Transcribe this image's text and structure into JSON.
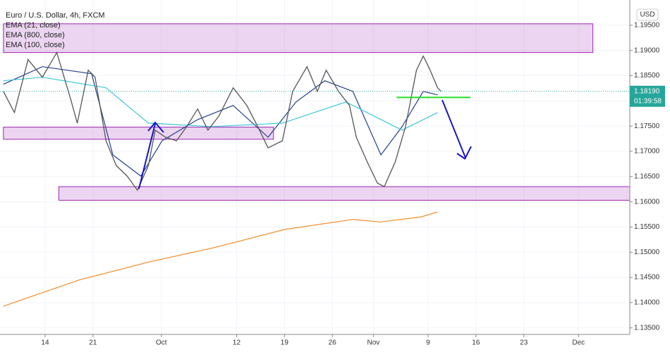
{
  "chart_data": {
    "type": "line",
    "title": "Euro / U.S. Dollar, 4h, FXCM",
    "currency": "USD",
    "last_price": {
      "value": 1.1819,
      "label": "1.18190"
    },
    "countdown": "01:39:58",
    "xlim": [
      -6.6,
      85.5
    ],
    "ylim": [
      1.1337,
      1.1989
    ],
    "xticks": [
      {
        "value": 0,
        "label": "14"
      },
      {
        "value": 7,
        "label": "21"
      },
      {
        "value": 17,
        "label": "Oct"
      },
      {
        "value": 28,
        "label": "12"
      },
      {
        "value": 35,
        "label": "19"
      },
      {
        "value": 42,
        "label": "26"
      },
      {
        "value": 48,
        "label": "Nov"
      },
      {
        "value": 56,
        "label": "9"
      },
      {
        "value": 63,
        "label": "16"
      },
      {
        "value": 70,
        "label": "23"
      },
      {
        "value": 78,
        "label": "Dec"
      }
    ],
    "yticks": [
      {
        "value": 1.135,
        "label": "1.13500"
      },
      {
        "value": 1.14,
        "label": "1.14000"
      },
      {
        "value": 1.145,
        "label": "1.14500"
      },
      {
        "value": 1.15,
        "label": "1.15000"
      },
      {
        "value": 1.155,
        "label": "1.15500"
      },
      {
        "value": 1.16,
        "label": "1.16000"
      },
      {
        "value": 1.165,
        "label": "1.16500"
      },
      {
        "value": 1.17,
        "label": "1.17000"
      },
      {
        "value": 1.175,
        "label": "1.17500"
      },
      {
        "value": 1.18,
        "label": "1.18000"
      },
      {
        "value": 1.185,
        "label": "1.18500"
      },
      {
        "value": 1.19,
        "label": "1.19000"
      },
      {
        "value": 1.195,
        "label": "1.19500"
      }
    ],
    "price": {
      "color": "#555555",
      "x": [
        -6.1,
        -4.5,
        -2.5,
        -0.4,
        1.7,
        3.7,
        4.7,
        6.3,
        7.3,
        8.9,
        10.4,
        12.0,
        13.5,
        15.1,
        16.1,
        17.6,
        19.2,
        20.7,
        22.3,
        23.8,
        25.4,
        27.5,
        29.5,
        31.1,
        32.6,
        34.7,
        36.2,
        38.3,
        39.8,
        41.1,
        42.9,
        44.5,
        45.5,
        47.1,
        48.6,
        49.6,
        51.2,
        52.7,
        54.3,
        55.3,
        56.3,
        57.4,
        57.9
      ],
      "values": [
        1.1819,
        1.1777,
        1.1882,
        1.1847,
        1.1896,
        1.1805,
        1.1756,
        1.1861,
        1.1847,
        1.1721,
        1.1672,
        1.1651,
        1.1623,
        1.1672,
        1.1742,
        1.1728,
        1.1721,
        1.1749,
        1.1784,
        1.1742,
        1.177,
        1.1826,
        1.1791,
        1.1749,
        1.1707,
        1.1721,
        1.1819,
        1.1868,
        1.1819,
        1.1861,
        1.1819,
        1.1791,
        1.1728,
        1.1679,
        1.1637,
        1.163,
        1.1679,
        1.1749,
        1.1861,
        1.1889,
        1.1861,
        1.1826,
        1.1819
      ]
    },
    "series": [
      {
        "name": "EMA (21, close)",
        "color": "#1f3f8f",
        "x": [
          -6.1,
          -0.4,
          6.8,
          9.9,
          14.0,
          17.1,
          22.3,
          27.5,
          32.6,
          36.7,
          40.9,
          45.0,
          49.1,
          52.2,
          55.3,
          57.4
        ],
        "values": [
          1.1833,
          1.1868,
          1.1854,
          1.1693,
          1.1651,
          1.1721,
          1.1763,
          1.1791,
          1.1728,
          1.1798,
          1.184,
          1.1819,
          1.1693,
          1.1749,
          1.1819,
          1.1812
        ]
      },
      {
        "name": "EMA (800, close)",
        "color": "#f28c28",
        "x": [
          -6.1,
          5,
          15,
          25,
          35,
          45,
          49,
          55,
          57.4
        ],
        "values": [
          1.1393,
          1.1445,
          1.148,
          1.151,
          1.1545,
          1.1565,
          1.156,
          1.157,
          1.158
        ]
      },
      {
        "name": "EMA (100, close)",
        "color": "#3cc6d8",
        "x": [
          -6.1,
          -0.4,
          8.9,
          15.1,
          24.4,
          34.7,
          44.0,
          52.2,
          57.4
        ],
        "values": [
          1.184,
          1.1847,
          1.1826,
          1.1756,
          1.1749,
          1.1756,
          1.1798,
          1.1742,
          1.1777
        ]
      }
    ],
    "zones": [
      {
        "x": [
          -6.1,
          80.1
        ],
        "y": [
          1.1896,
          1.1953
        ]
      },
      {
        "x": [
          -6.1,
          33.4
        ],
        "y": [
          1.1724,
          1.1748
        ]
      },
      {
        "x": [
          2.0,
          85.5
        ],
        "y": [
          1.1603,
          1.163
        ]
      }
    ],
    "level": {
      "x": [
        51.4,
        62.2
      ],
      "value": 1.1807,
      "color": "#22dd22"
    },
    "grid": true
  }
}
